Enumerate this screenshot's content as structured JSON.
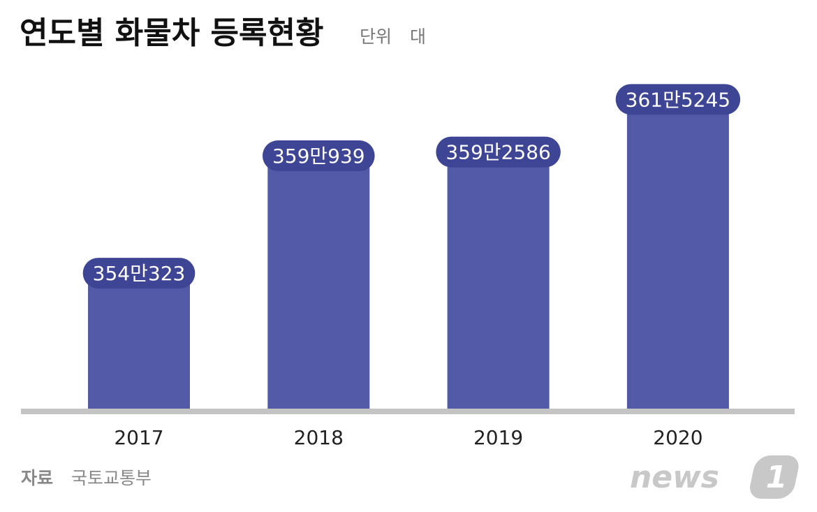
{
  "chart_data": {
    "type": "bar",
    "title": "연도별 화물차 등록현황",
    "unit_label": "단위",
    "unit": "대",
    "categories": [
      "2017",
      "2018",
      "2019",
      "2020"
    ],
    "values": [
      3540323,
      3590939,
      3592586,
      3615245
    ],
    "value_labels": [
      "354만323",
      "359만939",
      "359만2586",
      "361만5245"
    ],
    "color": "#525aa8",
    "label_color": "#3f4595",
    "ylim": [
      3481000,
      3628000
    ],
    "source_label": "자료",
    "source": "국토교통부",
    "logo": {
      "text": "news",
      "mark": "1"
    }
  }
}
